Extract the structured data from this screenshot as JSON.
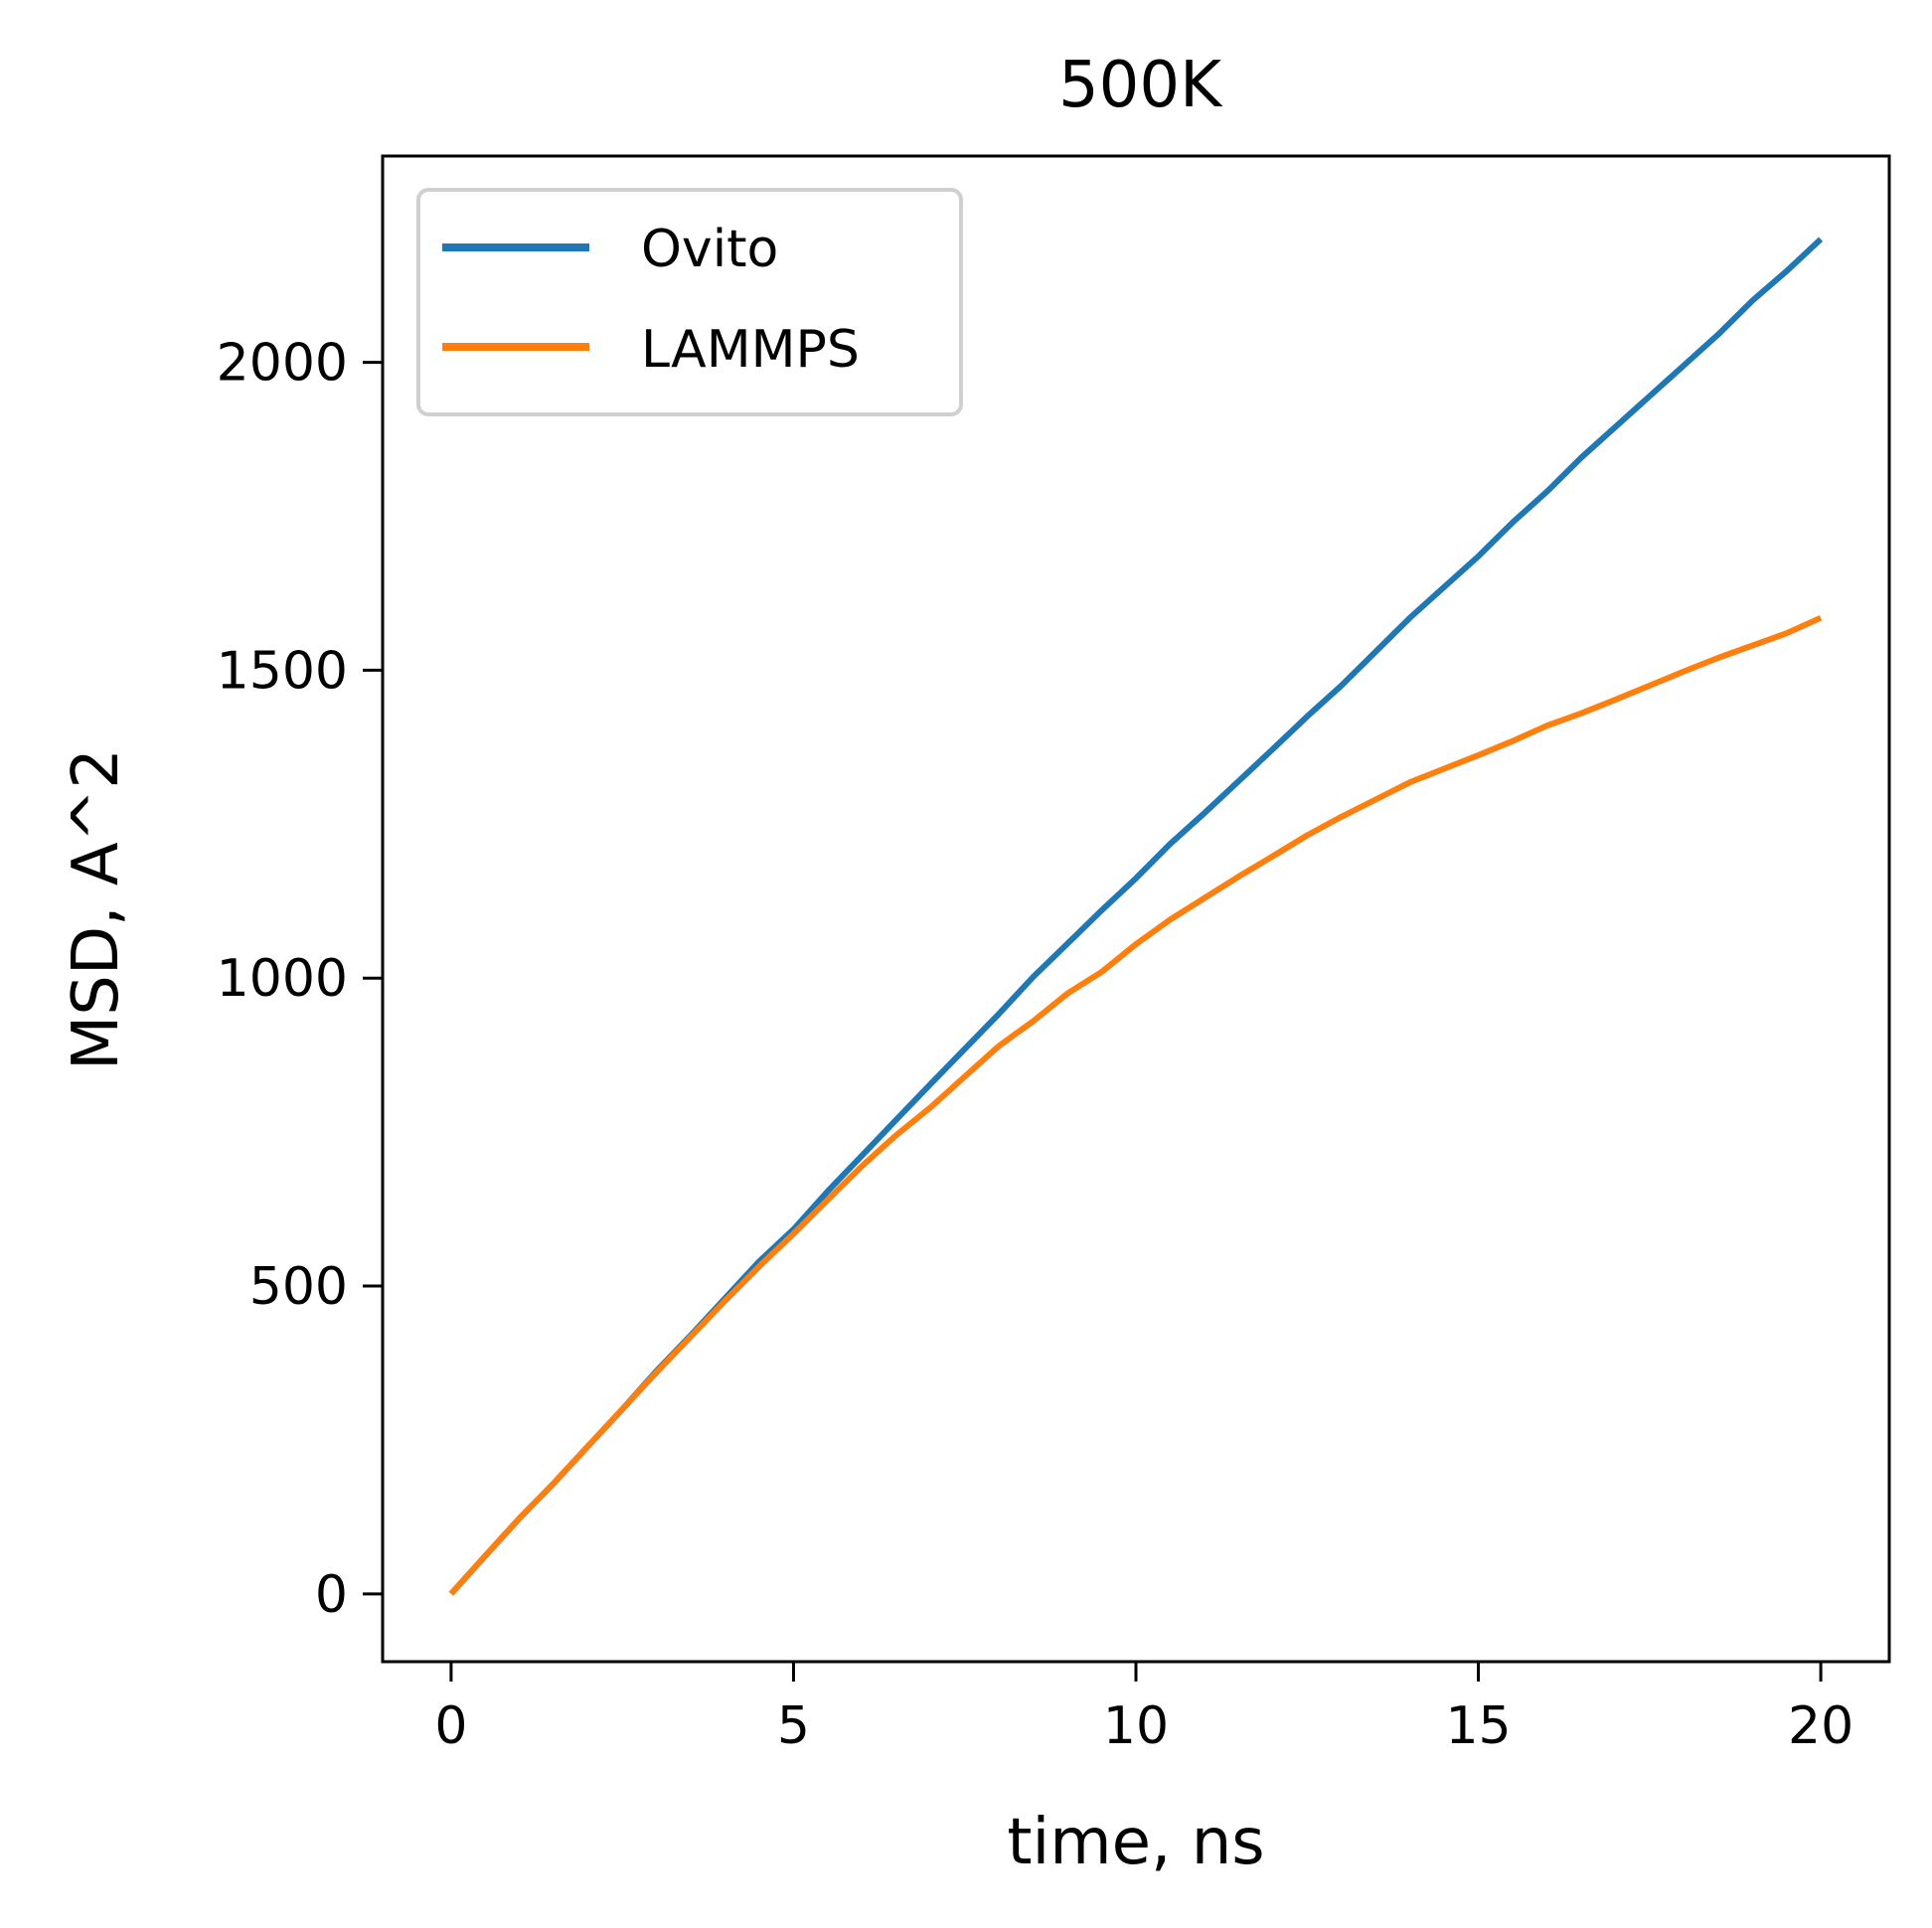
{
  "chart_data": {
    "type": "line",
    "title": "500K",
    "xlabel": "time, ns",
    "ylabel": "MSD, A^2",
    "xlim": [
      -1,
      21
    ],
    "ylim": [
      -110,
      2335
    ],
    "x_ticks": [
      0,
      5,
      10,
      15,
      20
    ],
    "y_ticks": [
      0,
      500,
      1000,
      1500,
      2000
    ],
    "grid": false,
    "legend_position": "top-left",
    "series": [
      {
        "name": "Ovito",
        "color": "#1f77b4",
        "x": [
          0,
          0.5,
          1,
          1.5,
          2,
          2.5,
          3,
          3.5,
          4,
          4.5,
          5,
          5.5,
          6,
          6.5,
          7,
          7.5,
          8,
          8.5,
          9,
          9.5,
          10,
          10.5,
          11,
          11.5,
          12,
          12.5,
          13,
          13.5,
          14,
          14.5,
          15,
          15.5,
          16,
          16.5,
          17,
          17.5,
          18,
          18.5,
          19,
          19.5,
          20
        ],
        "y": [
          0,
          62,
          123,
          180,
          240,
          300,
          362,
          420,
          480,
          540,
          592,
          654,
          712,
          770,
          828,
          885,
          942,
          1002,
          1056,
          1110,
          1162,
          1218,
          1268,
          1320,
          1372,
          1425,
          1475,
          1530,
          1585,
          1635,
          1685,
          1740,
          1790,
          1845,
          1895,
          1945,
          1995,
          2045,
          2100,
          2148,
          2200
        ]
      },
      {
        "name": "LAMMPS",
        "color": "#ff7f0e",
        "x": [
          0,
          0.5,
          1,
          1.5,
          2,
          2.5,
          3,
          3.5,
          4,
          4.5,
          5,
          5.5,
          6,
          6.5,
          7,
          7.5,
          8,
          8.5,
          9,
          9.5,
          10,
          10.5,
          11,
          11.5,
          12,
          12.5,
          13,
          13.5,
          14,
          14.5,
          15,
          15.5,
          16,
          16.5,
          17,
          17.5,
          18,
          18.5,
          19,
          19.5,
          20
        ],
        "y": [
          0,
          62,
          123,
          180,
          240,
          300,
          360,
          418,
          476,
          532,
          585,
          640,
          695,
          745,
          790,
          840,
          890,
          930,
          975,
          1010,
          1055,
          1095,
          1130,
          1165,
          1198,
          1232,
          1262,
          1290,
          1318,
          1340,
          1362,
          1385,
          1410,
          1430,
          1452,
          1475,
          1498,
          1520,
          1540,
          1560,
          1585
        ]
      }
    ]
  }
}
